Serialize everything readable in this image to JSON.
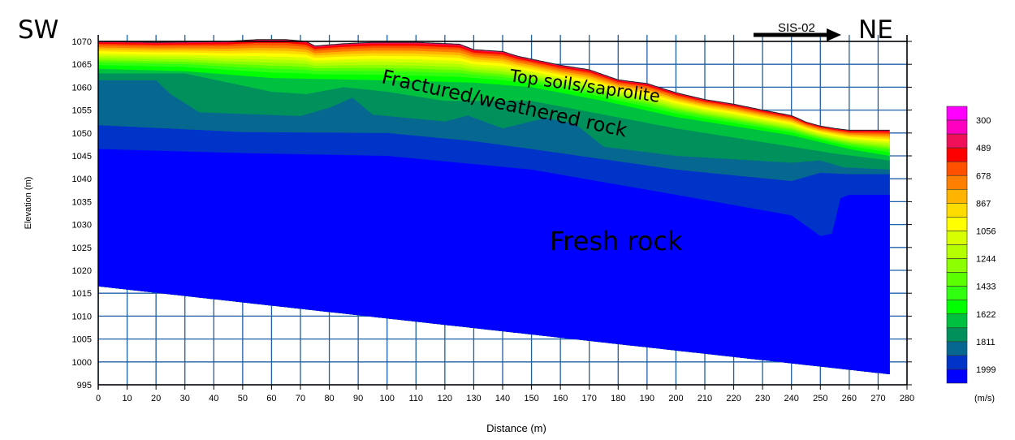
{
  "chart_data": {
    "type": "heatmap",
    "title": "",
    "xlabel": "Distance (m)",
    "ylabel": "Elevation (m)",
    "xlim": [
      0,
      280
    ],
    "ylim": [
      995,
      1070
    ],
    "x_ticks": [
      0,
      10,
      20,
      30,
      40,
      50,
      60,
      70,
      80,
      90,
      100,
      110,
      120,
      130,
      140,
      150,
      160,
      170,
      180,
      190,
      200,
      210,
      220,
      230,
      240,
      250,
      260,
      270,
      280
    ],
    "y_ticks": [
      995,
      1000,
      1005,
      1010,
      1015,
      1020,
      1025,
      1030,
      1035,
      1040,
      1045,
      1050,
      1055,
      1060,
      1065,
      1070
    ],
    "grid": true,
    "colorbar": {
      "unit": "(m/s)",
      "labels": [
        "300",
        "489",
        "678",
        "867",
        "1056",
        "1244",
        "1433",
        "1622",
        "1811",
        "1999"
      ],
      "colors": [
        "#ff00ff",
        "#ff00c0",
        "#f0105a",
        "#ff0000",
        "#ff5000",
        "#ff8000",
        "#ffb400",
        "#ffdc00",
        "#ffff00",
        "#d8ff00",
        "#b4ff00",
        "#8cff00",
        "#5aff00",
        "#30ff10",
        "#00ff00",
        "#00c040",
        "#00905c",
        "#066890",
        "#0034c8",
        "#0000ff"
      ]
    },
    "surface": [
      [
        0,
        1070
      ],
      [
        20,
        1069.8
      ],
      [
        45,
        1070
      ],
      [
        55,
        1070.4
      ],
      [
        65,
        1070.4
      ],
      [
        72,
        1070
      ],
      [
        75,
        1069
      ],
      [
        85,
        1069.5
      ],
      [
        95,
        1069.8
      ],
      [
        110,
        1069.8
      ],
      [
        125,
        1069.4
      ],
      [
        130,
        1068.2
      ],
      [
        140,
        1067.8
      ],
      [
        145,
        1066.8
      ],
      [
        160,
        1064.8
      ],
      [
        170,
        1063.8
      ],
      [
        180,
        1061.6
      ],
      [
        190,
        1060.8
      ],
      [
        200,
        1058.8
      ],
      [
        210,
        1057.3
      ],
      [
        220,
        1056.3
      ],
      [
        230,
        1055
      ],
      [
        240,
        1053.8
      ],
      [
        245,
        1052.4
      ],
      [
        250,
        1051.5
      ],
      [
        255,
        1051
      ],
      [
        260,
        1050.6
      ],
      [
        274,
        1050.6
      ]
    ],
    "bottom": [
      [
        0,
        1016.5
      ],
      [
        274,
        997.3
      ]
    ],
    "boundaries": [
      {
        "velocity": "1622",
        "color": "#00c040",
        "points": [
          [
            0,
            1064
          ],
          [
            30,
            1063.5
          ],
          [
            60,
            1062
          ],
          [
            100,
            1061.5
          ],
          [
            130,
            1061
          ],
          [
            150,
            1060
          ],
          [
            175,
            1057
          ],
          [
            200,
            1053.5
          ],
          [
            220,
            1051.5
          ],
          [
            240,
            1049.5
          ],
          [
            260,
            1046.5
          ],
          [
            274,
            1045
          ]
        ]
      },
      {
        "velocity": "1811",
        "color": "#00905c",
        "points": [
          [
            0,
            1063
          ],
          [
            30,
            1063
          ],
          [
            45,
            1061
          ],
          [
            60,
            1059
          ],
          [
            72,
            1058.5
          ],
          [
            85,
            1060
          ],
          [
            100,
            1059
          ],
          [
            120,
            1057
          ],
          [
            150,
            1057
          ],
          [
            175,
            1054
          ],
          [
            200,
            1051
          ],
          [
            220,
            1049
          ],
          [
            240,
            1047
          ],
          [
            255,
            1045.5
          ],
          [
            274,
            1044
          ]
        ]
      },
      {
        "velocity": "1811-1999",
        "color": "#066890",
        "points": [
          [
            0,
            1061.5
          ],
          [
            20,
            1061.5
          ],
          [
            25,
            1058.5
          ],
          [
            35,
            1054.5
          ],
          [
            70,
            1053.7
          ],
          [
            80,
            1055.5
          ],
          [
            88,
            1057.7
          ],
          [
            95,
            1054
          ],
          [
            120,
            1052.5
          ],
          [
            128,
            1053.8
          ],
          [
            140,
            1051
          ],
          [
            155,
            1053.3
          ],
          [
            165,
            1052
          ],
          [
            175,
            1047
          ],
          [
            200,
            1045
          ],
          [
            240,
            1043.5
          ],
          [
            250,
            1044
          ],
          [
            258,
            1042.5
          ],
          [
            274,
            1042
          ]
        ]
      },
      {
        "velocity": "1999",
        "color": "#0034c8",
        "points": [
          [
            0,
            1051.7
          ],
          [
            50,
            1050.2
          ],
          [
            100,
            1050
          ],
          [
            130,
            1048.2
          ],
          [
            150,
            1046.5
          ],
          [
            200,
            1042
          ],
          [
            240,
            1039.5
          ],
          [
            250,
            1041.3
          ],
          [
            260,
            1041
          ],
          [
            274,
            1041
          ]
        ]
      },
      {
        "velocity": ">1999",
        "color": "#0000ff",
        "points": [
          [
            0,
            1046.5
          ],
          [
            50,
            1045.6
          ],
          [
            100,
            1045
          ],
          [
            150,
            1042
          ],
          [
            200,
            1036.5
          ],
          [
            240,
            1032
          ],
          [
            250,
            1027.5
          ],
          [
            254,
            1028
          ],
          [
            257,
            1035.8
          ],
          [
            260,
            1036.5
          ],
          [
            274,
            1036.5
          ]
        ]
      }
    ],
    "annotations": {
      "sw": "SW",
      "ne": "NE",
      "profile": "SIS-02",
      "top_soils": "Top soils/saprolite",
      "fractured": "Fractured/weathered rock",
      "fresh": "Fresh rock"
    }
  }
}
